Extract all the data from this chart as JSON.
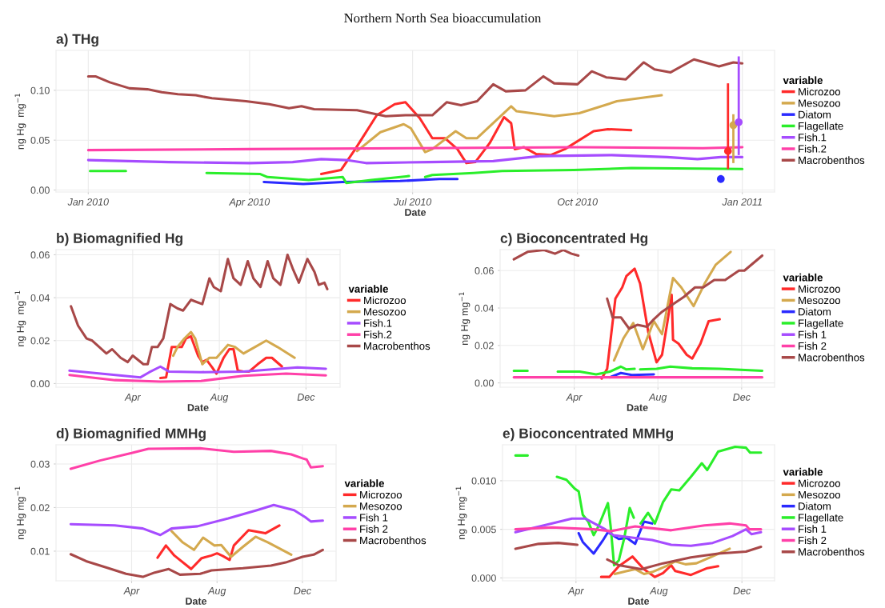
{
  "chart_data": [
    {
      "type": "line",
      "title": "Northern North Sea bioaccumulation",
      "subtitle": "a) THg",
      "xlabel": "Date",
      "ylabel": "ng Hg  mg$^{−1}$",
      "legend_title": "variable",
      "legend": "right",
      "grid": true,
      "xlim": [
        "2009-12-14",
        "2011-01-19"
      ],
      "ylim": [
        -0.002,
        0.14
      ],
      "xticks": [
        {
          "value": "2010-01-01",
          "label": "Jan 2010"
        },
        {
          "value": "2010-04-01",
          "label": "Apr 2010"
        },
        {
          "value": "2010-07-01",
          "label": "Jul 2010"
        },
        {
          "value": "2010-10-01",
          "label": "Oct 2010"
        },
        {
          "value": "2011-01-01",
          "label": "Jan 2011"
        }
      ],
      "yticks": [
        {
          "value": 0,
          "label": "0.00"
        },
        {
          "value": 0.05,
          "label": "0.05"
        },
        {
          "value": 0.1,
          "label": "0.10"
        }
      ],
      "series": [
        {
          "name": "Microzoo",
          "color": "#ff2a2a",
          "x": [
            "2010-05-11",
            "2010-05-22",
            "2010-05-30",
            "2010-06-11",
            "2010-06-21",
            "2010-06-27",
            "2010-07-05",
            "2010-07-12",
            "2010-07-19",
            "2010-07-26",
            "2010-07-31",
            "2010-08-05",
            "2010-08-13",
            "2010-08-21",
            "2010-08-25",
            "2010-08-27",
            "2010-09-01",
            "2010-09-08",
            "2010-09-16",
            "2010-09-24",
            "2010-10-10",
            "2010-10-18",
            "2010-10-31"
          ],
          "values": [
            0.016,
            0.02,
            0.041,
            0.075,
            0.086,
            0.088,
            0.072,
            0.052,
            0.052,
            0.041,
            0.027,
            0.028,
            0.047,
            0.073,
            0.067,
            0.041,
            0.043,
            0.036,
            0.035,
            0.041,
            0.059,
            0.061,
            0.06
          ]
        },
        {
          "name": "Mesozoo",
          "color": "#d4a94e",
          "x": [
            "2010-05-31",
            "2010-06-13",
            "2010-06-26",
            "2010-06-30",
            "2010-07-08",
            "2010-07-12",
            "2010-07-25",
            "2010-07-31",
            "2010-08-06",
            "2010-08-25",
            "2010-08-28",
            "2010-09-18",
            "2010-10-02",
            "2010-10-23",
            "2010-11-17"
          ],
          "values": [
            0.039,
            0.058,
            0.066,
            0.062,
            0.038,
            0.041,
            0.059,
            0.052,
            0.052,
            0.084,
            0.079,
            0.074,
            0.077,
            0.089,
            0.095
          ]
        },
        {
          "name": "Diatom",
          "color": "#2a2aff",
          "x": [
            "2010-04-09",
            "2010-05-01",
            "2010-05-23",
            "2010-06-24",
            "2010-07-16",
            "2010-07-26"
          ],
          "values": [
            0.008,
            0.006,
            0.008,
            0.009,
            0.011,
            0.011
          ]
        },
        {
          "name": "Flagellate",
          "color": "#2aee2a",
          "x": [
            "2010-01-02",
            "2010-01-22",
            "2010-02-15",
            "2010-03-08",
            "2010-04-07",
            "2010-04-11",
            "2010-05-04",
            "2010-05-23",
            "2010-05-25",
            "2010-06-08",
            "2010-06-29",
            "2010-07-03",
            "2010-07-08",
            "2010-07-12",
            "2010-08-04",
            "2010-08-20",
            "2010-09-29",
            "2010-10-31",
            "2011-01-01"
          ],
          "values": [
            0.019,
            0.019,
            null,
            0.017,
            0.016,
            0.013,
            0.01,
            0.013,
            0.007,
            0.01,
            0.014,
            null,
            0.013,
            0.015,
            0.017,
            0.019,
            0.02,
            0.022,
            0.021
          ]
        },
        {
          "name": "Fish.1",
          "color": "#a64cff",
          "x": [
            "2010-01-01",
            "2010-02-15",
            "2010-04-01",
            "2010-04-25",
            "2010-05-11",
            "2010-05-25",
            "2010-06-05",
            "2010-07-10",
            "2010-08-15",
            "2010-09-10",
            "2010-10-20",
            "2010-11-20",
            "2010-12-07",
            "2010-12-20",
            "2011-01-01"
          ],
          "values": [
            0.03,
            0.028,
            0.027,
            0.028,
            0.031,
            0.03,
            0.027,
            0.028,
            0.029,
            0.034,
            0.035,
            0.033,
            0.031,
            0.033,
            0.033
          ]
        },
        {
          "name": "Fish.2",
          "color": "#ff40a8",
          "x": [
            "2010-01-01",
            "2010-04-01",
            "2010-07-01",
            "2010-10-01",
            "2010-12-10",
            "2011-01-01"
          ],
          "values": [
            0.04,
            0.041,
            0.042,
            0.043,
            0.042,
            0.043
          ]
        },
        {
          "name": "Macrobenthos",
          "color": "#a84848",
          "x": [
            "2010-01-01",
            "2010-01-05",
            "2010-01-13",
            "2010-01-24",
            "2010-02-03",
            "2010-02-11",
            "2010-02-20",
            "2010-03-02",
            "2010-03-11",
            "2010-03-30",
            "2010-04-12",
            "2010-04-23",
            "2010-04-30",
            "2010-05-07",
            "2010-05-31",
            "2010-06-16",
            "2010-06-27",
            "2010-07-12",
            "2010-07-20",
            "2010-07-28",
            "2010-08-06",
            "2010-08-15",
            "2010-08-22",
            "2010-09-02",
            "2010-09-12",
            "2010-09-18",
            "2010-10-01",
            "2010-10-09",
            "2010-10-17",
            "2010-10-28",
            "2010-11-07",
            "2010-11-13",
            "2010-11-22",
            "2010-12-05",
            "2010-12-19",
            "2010-12-27",
            "2011-01-01"
          ],
          "values": [
            0.114,
            0.114,
            0.108,
            0.102,
            0.101,
            0.098,
            0.096,
            0.095,
            0.092,
            0.089,
            0.086,
            0.082,
            0.084,
            0.081,
            0.08,
            0.074,
            0.075,
            0.075,
            0.088,
            0.085,
            0.089,
            0.106,
            0.099,
            0.1,
            0.114,
            0.107,
            0.106,
            0.119,
            0.113,
            0.111,
            0.128,
            0.121,
            0.118,
            0.131,
            0.124,
            0.128,
            0.127
          ]
        },
        {
          "type": "scatter",
          "marker": "circle",
          "color": "#2a2aff",
          "x": [
            "2010-12-20"
          ],
          "values": [
            0.011
          ],
          "errors": [
            [
              0.008,
              0.015
            ]
          ]
        },
        {
          "type": "scatter",
          "marker": "circle",
          "color": "#ff2a2a",
          "x": [
            "2010-12-24"
          ],
          "values": [
            0.039
          ],
          "errors": [
            [
              0.021,
              0.107
            ]
          ]
        },
        {
          "type": "scatter",
          "marker": "circle",
          "color": "#d4a94e",
          "x": [
            "2010-12-27"
          ],
          "values": [
            0.065
          ],
          "errors": [
            [
              0.027,
              0.076
            ]
          ]
        },
        {
          "type": "scatter",
          "marker": "circle",
          "color": "#a64cff",
          "x": [
            "2010-12-30"
          ],
          "values": [
            0.068
          ],
          "errors": [
            [
              0.035,
              0.134
            ]
          ]
        }
      ]
    },
    {
      "type": "line",
      "title": "b) Biomagnified Hg",
      "xlabel": "Date",
      "ylabel": "ng Hg  mg$^{−1}$",
      "legend_title": "variable",
      "legend": "right",
      "grid": true,
      "xlim": [
        "2009-12-14",
        "2011-01-18"
      ],
      "ylim": [
        -0.0017,
        0.0624
      ],
      "xticks": [
        {
          "value": "2010-04-01",
          "label": "Apr"
        },
        {
          "value": "2010-08-01",
          "label": "Aug"
        },
        {
          "value": "2010-12-01",
          "label": "Dec"
        }
      ],
      "yticks": [
        {
          "value": 0,
          "label": "0.00"
        },
        {
          "value": 0.02,
          "label": "0.02"
        },
        {
          "value": 0.04,
          "label": "0.04"
        },
        {
          "value": 0.06,
          "label": "0.06"
        }
      ],
      "series": [
        {
          "name": "Microzoo",
          "color": "#ff2a2a",
          "x": [
            "2010-05-10",
            "2010-05-18",
            "2010-05-26",
            "2010-06-03",
            "2010-06-09",
            "2010-06-15",
            "2010-06-22",
            "2010-07-02",
            "2010-07-08",
            "2010-07-14",
            "2010-07-22",
            "2010-07-28",
            "2010-08-07",
            "2010-08-15",
            "2010-08-21",
            "2010-08-27",
            "2010-09-04",
            "2010-09-12",
            "2010-09-24",
            "2010-10-06",
            "2010-10-14",
            "2010-10-28"
          ],
          "values": [
            0.0026,
            0.0029,
            0.017,
            0.017,
            0.017,
            0.021,
            0.022,
            0.013,
            0.01,
            0.011,
            0.0075,
            0.0046,
            0.012,
            0.016,
            0.016,
            0.006,
            0.0056,
            0.0056,
            0.009,
            0.012,
            0.012,
            0.008
          ]
        },
        {
          "name": "Mesozoo",
          "color": "#d4a94e",
          "x": [
            "2010-05-28",
            "2010-06-03",
            "2010-06-13",
            "2010-06-22",
            "2010-06-28",
            "2010-07-08",
            "2010-07-18",
            "2010-07-28",
            "2010-08-13",
            "2010-08-23",
            "2010-09-04",
            "2010-09-20",
            "2010-10-06",
            "2010-10-22",
            "2010-11-15"
          ],
          "values": [
            0.013,
            0.017,
            0.021,
            0.024,
            0.021,
            0.009,
            0.012,
            0.012,
            0.018,
            0.017,
            0.014,
            0.017,
            0.02,
            0.017,
            0.012
          ]
        },
        {
          "name": "Fish.1",
          "color": "#a64cff",
          "x": [
            "2010-01-02",
            "2010-02-15",
            "2010-04-12",
            "2010-04-24",
            "2010-05-10",
            "2010-05-22",
            "2010-07-06",
            "2010-09-04",
            "2010-11-19",
            "2010-12-29"
          ],
          "values": [
            0.006,
            0.0046,
            0.0029,
            0.0052,
            0.0079,
            0.0056,
            0.0053,
            0.0056,
            0.0075,
            0.0069
          ]
        },
        {
          "name": "Fish.2",
          "color": "#ff40a8",
          "x": [
            "2010-01-02",
            "2010-03-07",
            "2010-05-10",
            "2010-07-06",
            "2010-09-04",
            "2010-11-03",
            "2010-12-29"
          ],
          "values": [
            0.004,
            0.0016,
            0.0009,
            0.0012,
            0.0036,
            0.0046,
            0.0038
          ]
        },
        {
          "name": "Macrobenthos",
          "color": "#a84848",
          "x": [
            "2010-01-04",
            "2010-01-14",
            "2010-01-26",
            "2010-02-03",
            "2010-02-13",
            "2010-02-23",
            "2010-03-03",
            "2010-03-15",
            "2010-03-25",
            "2010-04-01",
            "2010-04-16",
            "2010-04-22",
            "2010-04-28",
            "2010-05-06",
            "2010-05-14",
            "2010-05-24",
            "2010-06-03",
            "2010-06-11",
            "2010-06-22",
            "2010-06-30",
            "2010-07-08",
            "2010-07-18",
            "2010-07-24",
            "2010-08-03",
            "2010-08-13",
            "2010-08-21",
            "2010-08-31",
            "2010-09-10",
            "2010-09-18",
            "2010-09-28",
            "2010-10-08",
            "2010-10-16",
            "2010-10-26",
            "2010-11-05",
            "2010-11-13",
            "2010-11-21",
            "2010-12-03",
            "2010-12-13",
            "2010-12-19",
            "2010-12-27",
            "2010-12-31"
          ],
          "values": [
            0.036,
            0.027,
            0.021,
            0.02,
            0.017,
            0.014,
            0.016,
            0.012,
            0.01,
            0.013,
            0.009,
            0.009,
            0.017,
            0.017,
            0.021,
            0.037,
            0.035,
            0.034,
            0.039,
            0.038,
            0.037,
            0.049,
            0.045,
            0.043,
            0.058,
            0.049,
            0.046,
            0.057,
            0.049,
            0.045,
            0.057,
            0.049,
            0.046,
            0.06,
            0.053,
            0.047,
            0.058,
            0.052,
            0.046,
            0.047,
            0.044
          ]
        }
      ]
    },
    {
      "type": "line",
      "title": "c) Bioconcentrated Hg",
      "xlabel": "Date",
      "ylabel": "ng Hg mg$^{−1}$",
      "legend_title": "variable",
      "legend": "right",
      "grid": true,
      "xlim": [
        "2009-12-14",
        "2011-01-18"
      ],
      "ylim": [
        -0.0023,
        0.0712
      ],
      "xticks": [
        {
          "value": "2010-04-01",
          "label": "Apr"
        },
        {
          "value": "2010-08-01",
          "label": "Aug"
        },
        {
          "value": "2010-12-01",
          "label": "Dec"
        }
      ],
      "yticks": [
        {
          "value": 0,
          "label": "0.00"
        },
        {
          "value": 0.02,
          "label": "0.02"
        },
        {
          "value": 0.04,
          "label": "0.04"
        },
        {
          "value": 0.06,
          "label": "0.06"
        }
      ],
      "series": [
        {
          "name": "Microzoo",
          "color": "#ff2a2a",
          "x": [
            "2010-05-11",
            "2010-05-19",
            "2010-05-31",
            "2010-06-10",
            "2010-06-16",
            "2010-06-28",
            "2010-07-06",
            "2010-07-18",
            "2010-07-30",
            "2010-08-07",
            "2010-08-15",
            "2010-08-21",
            "2010-08-23",
            "2010-08-31",
            "2010-09-12",
            "2010-09-20",
            "2010-10-02",
            "2010-10-14",
            "2010-10-30"
          ],
          "values": [
            0.0023,
            0.0075,
            0.045,
            0.051,
            0.057,
            0.061,
            0.053,
            0.027,
            0.011,
            0.015,
            0.033,
            0.047,
            0.023,
            0.021,
            0.015,
            0.013,
            0.021,
            0.033,
            0.034
          ]
        },
        {
          "name": "Mesozoo",
          "color": "#d4a94e",
          "x": [
            "2010-05-29",
            "2010-06-12",
            "2010-06-26",
            "2010-07-10",
            "2010-07-26",
            "2010-08-07",
            "2010-08-23",
            "2010-09-04",
            "2010-09-22",
            "2010-10-08",
            "2010-10-24",
            "2010-11-15"
          ],
          "values": [
            0.012,
            0.024,
            0.032,
            0.018,
            0.033,
            0.026,
            0.056,
            0.051,
            0.041,
            0.053,
            0.063,
            0.07
          ]
        },
        {
          "name": "Diatom",
          "color": "#2a2aff",
          "x": [
            "2010-05-23",
            "2010-06-08",
            "2010-06-24",
            "2010-07-26"
          ],
          "values": [
            0.003,
            0.0053,
            0.0042,
            0.0045
          ]
        },
        {
          "name": "Flagellate",
          "color": "#2aee2a",
          "x": [
            "2010-01-03",
            "2010-01-23",
            "2010-02-15",
            "2010-03-08",
            "2010-04-09",
            "2010-05-03",
            "2010-05-23",
            "2010-06-08",
            "2010-06-16",
            "2010-06-28",
            "2010-07-02",
            "2010-07-06",
            "2010-07-30",
            "2010-08-19",
            "2010-09-20",
            "2010-10-30",
            "2010-12-31"
          ],
          "values": [
            0.0065,
            0.0065,
            null,
            0.006,
            0.006,
            0.0045,
            0.006,
            0.0087,
            0.0072,
            0.0075,
            null,
            0.0072,
            0.0075,
            0.0087,
            0.0078,
            0.0075,
            0.0065
          ]
        },
        {
          "name": "Fish 1",
          "color": "#a64cff"
        },
        {
          "name": "Fish 2",
          "color": "#ff40a8",
          "x": [
            "2010-01-03",
            "2010-06-01",
            "2010-12-31"
          ],
          "values": [
            0.003,
            0.003,
            0.003
          ]
        },
        {
          "name": "Macrobenthos",
          "color": "#a84848",
          "x": [
            "2010-01-03",
            "2010-01-23",
            "2010-02-16",
            "2010-03-04",
            "2010-03-16",
            "2010-03-28",
            "2010-04-07",
            "2010-04-25",
            "2010-05-19",
            "2010-05-27",
            "2010-06-08",
            "2010-06-20",
            "2010-07-02",
            "2010-07-16",
            "2010-07-26",
            "2010-08-07",
            "2010-08-23",
            "2010-09-08",
            "2010-09-24",
            "2010-10-06",
            "2010-10-22",
            "2010-11-07",
            "2010-11-27",
            "2010-12-05",
            "2010-12-31"
          ],
          "values": [
            0.066,
            0.07,
            0.071,
            0.069,
            0.071,
            0.069,
            0.068,
            null,
            0.045,
            0.035,
            0.035,
            0.029,
            0.031,
            0.03,
            0.034,
            0.038,
            0.042,
            0.046,
            0.051,
            0.051,
            0.055,
            0.055,
            0.06,
            0.06,
            0.068
          ]
        }
      ]
    },
    {
      "type": "line",
      "title": "d) Biomagnified MMHg",
      "xlabel": "Date",
      "ylabel": "ng Hg mg$^{−1}$",
      "legend_title": "variable",
      "legend": "right",
      "grid": true,
      "xlim": [
        "2009-12-14",
        "2011-01-18"
      ],
      "ylim": [
        0.0032,
        0.0344
      ],
      "xticks": [
        {
          "value": "2010-04-01",
          "label": "Apr"
        },
        {
          "value": "2010-08-01",
          "label": "Aug"
        },
        {
          "value": "2010-12-01",
          "label": "Dec"
        }
      ],
      "yticks": [
        0.01,
        0.02,
        0.03
      ],
      "series": [
        {
          "name": "Microzoo",
          "color": "#ff2a2a",
          "x": [
            "2010-05-08",
            "2010-05-20",
            "2010-06-01",
            "2010-06-25",
            "2010-07-10",
            "2010-07-24",
            "2010-08-01",
            "2010-08-09",
            "2010-08-19",
            "2010-08-25",
            "2010-09-15",
            "2010-10-09",
            "2010-10-29"
          ],
          "values": [
            0.0085,
            0.0113,
            0.009,
            0.0059,
            0.0084,
            0.009,
            0.0095,
            0.0089,
            0.008,
            0.0113,
            0.0148,
            0.0141,
            0.0159
          ]
        },
        {
          "name": "Mesozoo",
          "color": "#d4a94e",
          "x": [
            "2010-05-28",
            "2010-06-13",
            "2010-06-29",
            "2010-07-12",
            "2010-07-28",
            "2010-08-07",
            "2010-08-21",
            "2010-09-07",
            "2010-09-25",
            "2010-10-13",
            "2010-11-15"
          ],
          "values": [
            0.0146,
            0.012,
            0.0103,
            0.0131,
            0.0113,
            0.0114,
            0.0087,
            0.011,
            0.0133,
            0.012,
            0.0092
          ]
        },
        {
          "name": "Fish 1",
          "color": "#a64cff",
          "x": [
            "2010-01-04",
            "2010-03-08",
            "2010-04-17",
            "2010-05-12",
            "2010-05-28",
            "2010-07-04",
            "2010-08-17",
            "2010-09-27",
            "2010-10-21",
            "2010-11-19",
            "2010-12-05",
            "2010-12-13",
            "2010-12-30"
          ],
          "values": [
            0.0162,
            0.0159,
            0.0152,
            0.0137,
            0.0152,
            0.0157,
            0.0175,
            0.0194,
            0.0206,
            0.0194,
            0.0178,
            0.0168,
            0.017
          ]
        },
        {
          "name": "Fish 2",
          "color": "#ff40a8",
          "x": [
            "2010-01-04",
            "2010-02-15",
            "2010-04-01",
            "2010-04-25",
            "2010-07-08",
            "2010-08-25",
            "2010-10-17",
            "2010-11-15",
            "2010-12-01",
            "2010-12-07",
            "2010-12-13",
            "2010-12-30"
          ],
          "values": [
            0.0289,
            0.0308,
            0.0325,
            0.0335,
            0.0336,
            0.0328,
            0.033,
            0.0322,
            0.0313,
            0.031,
            0.0292,
            0.0295
          ]
        },
        {
          "name": "Macrobenthos",
          "color": "#a84848",
          "x": [
            "2010-01-04",
            "2010-01-26",
            "2010-02-27",
            "2010-03-24",
            "2010-04-17",
            "2010-05-04",
            "2010-05-24",
            "2010-06-09",
            "2010-07-08",
            "2010-07-24",
            "2010-09-07",
            "2010-10-17",
            "2010-11-07",
            "2010-12-01",
            "2010-12-17",
            "2010-12-30"
          ],
          "values": [
            0.0093,
            0.0077,
            0.0061,
            0.0048,
            0.0041,
            0.0051,
            0.0059,
            0.0046,
            0.0048,
            0.0056,
            0.0061,
            0.0067,
            0.0074,
            0.0087,
            0.0092,
            0.0103
          ]
        }
      ]
    },
    {
      "type": "line",
      "title": "e) Bioconcentrated MMHg",
      "xlabel": "Date",
      "ylabel": "ng Hg mg$^{−1}$",
      "legend_title": "variable",
      "legend": "right",
      "grid": true,
      "xlim": [
        "2009-12-14",
        "2011-01-18"
      ],
      "ylim": [
        -0.0003,
        0.0137
      ],
      "xticks": [
        {
          "value": "2010-04-01",
          "label": "Apr"
        },
        {
          "value": "2010-08-01",
          "label": "Aug"
        },
        {
          "value": "2010-12-01",
          "label": "Dec"
        }
      ],
      "yticks": [
        {
          "value": 0,
          "label": "0.000"
        },
        {
          "value": 0.005,
          "label": "0.005"
        },
        {
          "value": 0.01,
          "label": "0.010"
        }
      ],
      "series": [
        {
          "name": "Microzoo",
          "color": "#ff2a2a",
          "x": [
            "2010-05-08",
            "2010-05-20",
            "2010-06-03",
            "2010-06-23",
            "2010-07-10",
            "2010-07-26",
            "2010-08-07",
            "2010-08-19",
            "2010-08-25",
            "2010-09-17",
            "2010-10-11",
            "2010-10-27"
          ],
          "values": [
            0.0001,
            0.0001,
            0.0012,
            0.0022,
            0.0009,
            0.0001,
            0.0005,
            0.0013,
            0.0007,
            0.0003,
            0.001,
            0.0012
          ]
        },
        {
          "name": "Mesozoo",
          "color": "#d4a94e",
          "x": [
            "2010-05-28",
            "2010-06-15",
            "2010-06-27",
            "2010-07-10",
            "2010-07-22",
            "2010-08-11",
            "2010-08-25",
            "2010-09-09",
            "2010-09-25",
            "2010-10-15",
            "2010-11-13"
          ],
          "values": [
            0.0004,
            0.0007,
            0.0009,
            0.0004,
            0.0006,
            0.0012,
            0.0017,
            0.0014,
            0.0015,
            0.0021,
            0.003
          ]
        },
        {
          "name": "Diatom",
          "color": "#2a2aff",
          "x": [
            "2010-04-05",
            "2010-04-11",
            "2010-04-27",
            "2010-05-10",
            "2010-05-18",
            "2010-06-03",
            "2010-06-15",
            "2010-06-27",
            "2010-07-10",
            "2010-07-22"
          ],
          "values": [
            0.0046,
            0.0037,
            0.0025,
            0.0038,
            0.0047,
            0.004,
            0.0041,
            0.0035,
            0.0058,
            0.0056
          ]
        },
        {
          "name": "Flagellate",
          "color": "#2aee2a",
          "x": [
            "2010-01-02",
            "2010-01-20",
            "2010-02-10",
            "2010-03-04",
            "2010-03-18",
            "2010-03-30",
            "2010-04-05",
            "2010-04-11",
            "2010-04-19",
            "2010-04-27",
            "2010-05-04",
            "2010-05-18",
            "2010-05-22",
            "2010-05-27",
            "2010-06-03",
            "2010-06-11",
            "2010-06-19",
            "2010-06-25",
            "2010-06-30",
            "2010-07-05",
            "2010-07-16",
            "2010-07-26",
            "2010-08-07",
            "2010-08-19",
            "2010-08-31",
            "2010-09-17",
            "2010-10-03",
            "2010-10-11",
            "2010-10-27",
            "2010-11-21",
            "2010-12-07",
            "2010-12-13",
            "2010-12-29"
          ],
          "values": [
            0.0126,
            0.0126,
            null,
            0.0104,
            0.0101,
            0.0092,
            0.0089,
            0.0065,
            0.0058,
            0.0044,
            0.0053,
            0.0077,
            0.0053,
            0.0013,
            0.0018,
            0.0041,
            0.0072,
            0.0062,
            null,
            0.0056,
            0.0067,
            0.0056,
            0.0078,
            0.0091,
            0.009,
            0.0104,
            0.0118,
            0.0111,
            0.013,
            0.0135,
            0.0134,
            0.0129,
            0.0129
          ]
        },
        {
          "name": "Fish 1",
          "color": "#a64cff",
          "x": [
            "2010-01-02",
            "2010-02-25",
            "2010-03-26",
            "2010-04-15",
            "2010-05-14",
            "2010-05-26",
            "2010-06-27",
            "2010-07-22",
            "2010-08-19",
            "2010-09-17",
            "2010-10-19",
            "2010-11-17",
            "2010-12-07",
            "2010-12-15",
            "2010-12-29"
          ],
          "values": [
            0.0047,
            0.0056,
            0.0061,
            0.0061,
            0.005,
            0.0044,
            0.0041,
            0.0039,
            0.0034,
            0.0033,
            0.0036,
            0.0043,
            0.005,
            0.0045,
            0.0047
          ]
        },
        {
          "name": "Fish 2",
          "color": "#ff40a8",
          "x": [
            "2010-01-02",
            "2010-02-25",
            "2010-04-27",
            "2010-05-22",
            "2010-06-27",
            "2010-08-19",
            "2010-10-07",
            "2010-11-13",
            "2010-12-07",
            "2010-12-12",
            "2010-12-29"
          ],
          "values": [
            0.005,
            0.0052,
            0.005,
            0.0048,
            0.0053,
            0.0049,
            0.0054,
            0.0056,
            0.0054,
            0.005,
            0.005
          ]
        },
        {
          "name": "Macrobenthos",
          "color": "#a84848",
          "x": [
            "2010-01-02",
            "2010-02-05",
            "2010-03-06",
            "2010-04-03",
            "2010-04-25",
            "2010-05-17",
            "2010-06-03",
            "2010-07-06",
            "2010-08-07",
            "2010-09-17",
            "2010-10-27",
            "2010-12-07",
            "2010-12-29"
          ],
          "values": [
            0.003,
            0.0035,
            0.0036,
            0.0034,
            null,
            0.0019,
            0.0013,
            0.0009,
            0.0015,
            0.0021,
            0.0025,
            0.0027,
            0.0032
          ]
        }
      ]
    }
  ]
}
